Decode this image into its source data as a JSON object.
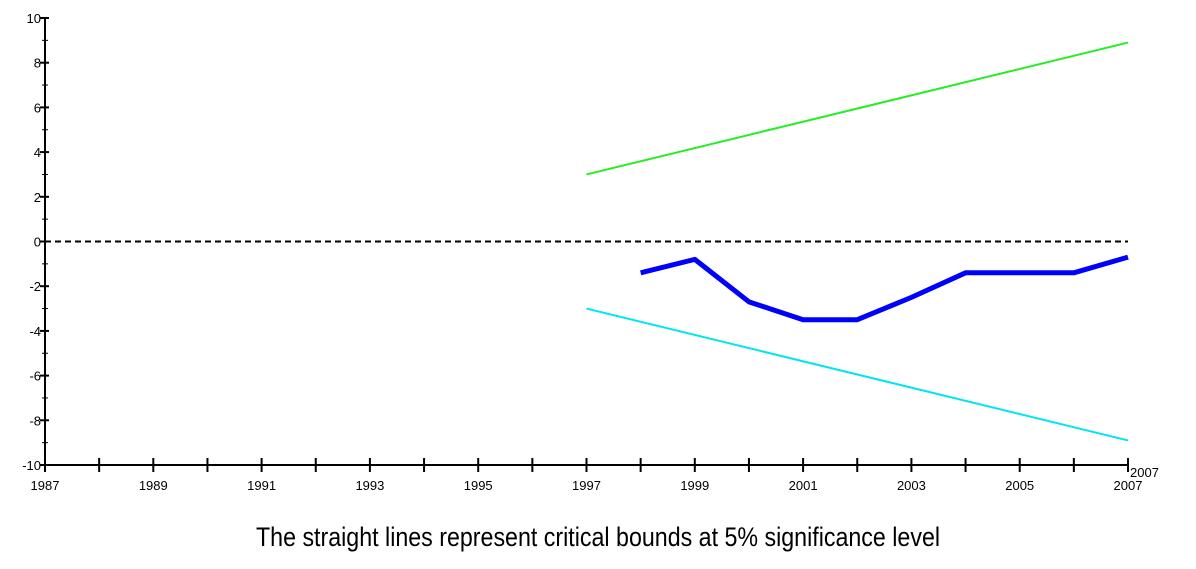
{
  "caption": "The straight lines represent critical bounds at 5% significance level",
  "chart_data": {
    "type": "line",
    "title": "",
    "xlabel": "",
    "ylabel": "",
    "xlim": [
      1987,
      2007
    ],
    "ylim": [
      -10,
      10
    ],
    "x_tick_labels": [
      "1987",
      "1989",
      "1991",
      "1993",
      "1995",
      "1997",
      "1999",
      "2001",
      "2003",
      "2005",
      "2007"
    ],
    "x_extra_label": "2007",
    "y_tick_labels": [
      "10",
      "8",
      "6",
      "4",
      "2",
      "0",
      "-2",
      "-4",
      "-6",
      "-8",
      "-10"
    ],
    "zero_line": {
      "y": 0,
      "style": "dashed",
      "color": "#000000"
    },
    "series": [
      {
        "color": "#0000ff",
        "width": "thick",
        "x": [
          1998,
          1999,
          2000,
          2001,
          2002,
          2003,
          2004,
          2005,
          2006,
          2007
        ],
        "y": [
          -1.4,
          -0.8,
          -2.7,
          -3.5,
          -3.5,
          -2.5,
          -1.4,
          -1.4,
          -1.4,
          -0.7
        ]
      },
      {
        "color": "#22ee22",
        "width": "thin",
        "x": [
          1997,
          2007
        ],
        "y": [
          3.0,
          8.9
        ]
      },
      {
        "color": "#00e5ee",
        "width": "thin",
        "x": [
          1997,
          2007
        ],
        "y": [
          -3.0,
          -8.9
        ]
      }
    ]
  }
}
